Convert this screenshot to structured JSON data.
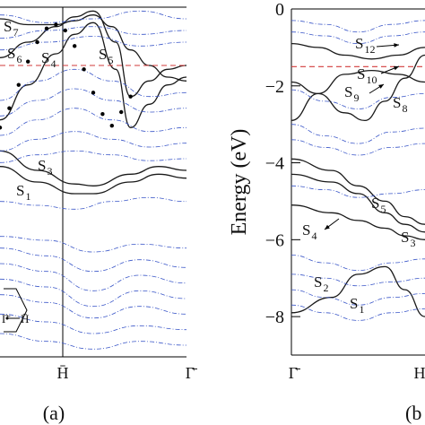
{
  "chart_data": [
    {
      "panel_label": "(a)",
      "type": "line",
      "x_ticks": [
        "",
        "H̄",
        "Γ̄"
      ],
      "ylim": [
        -9,
        0
      ],
      "fermi_level": -1.5,
      "state_labels": [
        {
          "name": "S",
          "sub": "7"
        },
        {
          "name": "S",
          "sub": "6"
        },
        {
          "name": "S",
          "sub": "4"
        },
        {
          "name": "S",
          "sub": "5"
        },
        {
          "name": "S",
          "sub": "3"
        },
        {
          "name": "S",
          "sub": "1"
        }
      ],
      "bz_inset": {
        "gamma": "Γ̄",
        "h": "H̄"
      },
      "dotted_band": {
        "x": [
          0.0,
          0.05,
          0.1,
          0.15,
          0.2,
          0.25,
          0.3,
          0.35,
          0.4,
          0.45,
          0.5,
          0.55,
          0.6,
          0.65,
          0.7
        ],
        "y": [
          -3.1,
          -2.6,
          -2.0,
          -1.4,
          -0.9,
          -0.55,
          -0.45,
          -0.6,
          -1.0,
          -1.6,
          -2.2,
          -2.75,
          -3.05,
          -2.7,
          -2.3
        ]
      },
      "series": [
        {
          "style": "solid",
          "x": [
            0,
            0.2,
            0.4,
            0.5,
            0.7,
            0.85,
            1.0
          ],
          "y": [
            -4.1,
            -4.5,
            -4.8,
            -4.8,
            -4.5,
            -4.3,
            -4.4
          ]
        },
        {
          "style": "solid",
          "x": [
            0,
            0.2,
            0.4,
            0.5,
            0.7,
            0.85,
            1.0
          ],
          "y": [
            -3.7,
            -4.2,
            -4.55,
            -4.6,
            -4.3,
            -4.1,
            -4.2
          ]
        },
        {
          "style": "solid",
          "x": [
            0,
            0.15,
            0.3,
            0.4,
            0.5,
            0.6,
            0.7,
            0.8,
            0.9,
            1.0
          ],
          "y": [
            -0.3,
            -0.45,
            -0.45,
            -0.35,
            -0.2,
            -0.5,
            -1.1,
            -1.5,
            -1.8,
            -1.9
          ]
        },
        {
          "style": "solid",
          "x": [
            0,
            0.15,
            0.3,
            0.4,
            0.5,
            0.62,
            0.7,
            0.8,
            0.9,
            1.0
          ],
          "y": [
            -1.3,
            -0.9,
            -0.5,
            -0.25,
            -0.1,
            -0.9,
            -2.3,
            -1.9,
            -1.6,
            -1.5
          ]
        },
        {
          "style": "solid",
          "x": [
            0,
            0.15,
            0.3,
            0.4,
            0.5,
            0.62,
            0.7,
            0.8,
            0.9,
            1.0
          ],
          "y": [
            -2.9,
            -2.0,
            -1.2,
            -0.7,
            -0.4,
            -1.6,
            -3.1,
            -2.5,
            -2.0,
            -1.8
          ]
        },
        {
          "style": "dashdot",
          "x": [
            0,
            0.25,
            0.5,
            0.75,
            1.0
          ],
          "y": [
            -0.2,
            -0.4,
            -0.3,
            -0.1,
            -0.3
          ]
        },
        {
          "style": "dashdot",
          "x": [
            0,
            0.25,
            0.5,
            0.75,
            1.0
          ],
          "y": [
            -0.8,
            -0.6,
            -0.5,
            -0.7,
            -0.6
          ]
        },
        {
          "style": "dashdot",
          "x": [
            0,
            0.25,
            0.5,
            0.75,
            1.0
          ],
          "y": [
            -1.1,
            -0.9,
            -0.75,
            -1.0,
            -0.9
          ]
        },
        {
          "style": "dashdot",
          "x": [
            0,
            0.2,
            0.4,
            0.6,
            0.8,
            1.0
          ],
          "y": [
            -2.4,
            -1.9,
            -1.6,
            -1.9,
            -2.3,
            -2.2
          ]
        },
        {
          "style": "dashdot",
          "x": [
            0,
            0.2,
            0.4,
            0.6,
            0.8,
            1.0
          ],
          "y": [
            -2.8,
            -2.4,
            -2.1,
            -2.4,
            -2.7,
            -2.6
          ]
        },
        {
          "style": "dashdot",
          "x": [
            0,
            0.2,
            0.4,
            0.6,
            0.8,
            1.0
          ],
          "y": [
            -3.3,
            -2.9,
            -2.6,
            -2.9,
            -3.2,
            -3.1
          ]
        },
        {
          "style": "dashdot",
          "x": [
            0,
            0.2,
            0.4,
            0.6,
            0.8,
            1.0
          ],
          "y": [
            -3.7,
            -3.4,
            -3.2,
            -3.4,
            -3.6,
            -3.5
          ]
        },
        {
          "style": "dashdot",
          "x": [
            0,
            0.2,
            0.4,
            0.6,
            0.8,
            1.0
          ],
          "y": [
            -4.0,
            -3.8,
            -3.7,
            -3.8,
            -3.95,
            -3.9
          ]
        },
        {
          "style": "dashdot",
          "x": [
            0,
            0.2,
            0.4,
            0.6,
            0.8,
            1.0
          ],
          "y": [
            -5.0,
            -5.1,
            -5.2,
            -5.0,
            -4.9,
            -5.0
          ]
        },
        {
          "style": "dashdot",
          "x": [
            0,
            0.25,
            0.5,
            0.75,
            1.0
          ],
          "y": [
            -5.9,
            -6.0,
            -6.3,
            -6.1,
            -6.2
          ]
        },
        {
          "style": "dashdot",
          "x": [
            0,
            0.25,
            0.5,
            0.75,
            1.0
          ],
          "y": [
            -6.2,
            -6.4,
            -6.8,
            -6.5,
            -6.7
          ]
        },
        {
          "style": "dashdot",
          "x": [
            0,
            0.25,
            0.5,
            0.75,
            1.0
          ],
          "y": [
            -6.6,
            -6.8,
            -7.3,
            -6.9,
            -7.1
          ]
        },
        {
          "style": "dashdot",
          "x": [
            0,
            0.25,
            0.5,
            0.75,
            1.0
          ],
          "y": [
            -7.0,
            -7.2,
            -7.7,
            -7.3,
            -7.5
          ]
        },
        {
          "style": "dashdot",
          "x": [
            0,
            0.25,
            0.5,
            0.75,
            1.0
          ],
          "y": [
            -7.4,
            -7.6,
            -8.0,
            -7.7,
            -7.9
          ]
        },
        {
          "style": "dashdot",
          "x": [
            0,
            0.25,
            0.5,
            0.75,
            1.0
          ],
          "y": [
            -7.9,
            -8.1,
            -8.4,
            -8.2,
            -8.3
          ]
        },
        {
          "style": "dashdot",
          "x": [
            0,
            0.25,
            0.5,
            0.75,
            1.0
          ],
          "y": [
            -8.4,
            -8.6,
            -8.8,
            -8.6,
            -8.7
          ]
        }
      ]
    },
    {
      "panel_label": "(b",
      "type": "line",
      "ylabel": "Energy (eV)",
      "ylim": [
        -9,
        0
      ],
      "yticks": [
        0,
        -2,
        -4,
        -6,
        -8
      ],
      "x_ticks": [
        "Γ̄",
        "H"
      ],
      "fermi_level": -1.5,
      "state_labels": [
        {
          "name": "S",
          "sub": "12"
        },
        {
          "name": "S",
          "sub": "10"
        },
        {
          "name": "S",
          "sub": "9"
        },
        {
          "name": "S",
          "sub": "8"
        },
        {
          "name": "S",
          "sub": "5"
        },
        {
          "name": "S",
          "sub": "4"
        },
        {
          "name": "S",
          "sub": "3"
        },
        {
          "name": "S",
          "sub": "2"
        },
        {
          "name": "S",
          "sub": "1"
        }
      ],
      "series": [
        {
          "style": "solid",
          "x": [
            0,
            0.3,
            0.5,
            0.7,
            0.85,
            1.0
          ],
          "y": [
            -7.9,
            -7.5,
            -6.9,
            -6.7,
            -7.3,
            -8.0
          ]
        },
        {
          "style": "solid",
          "x": [
            0,
            0.3,
            0.5,
            0.7,
            0.85,
            1.0
          ],
          "y": [
            -5.1,
            -5.3,
            -5.5,
            -5.7,
            -5.9,
            -6.0
          ]
        },
        {
          "style": "solid",
          "x": [
            0,
            0.3,
            0.5,
            0.7,
            0.85,
            1.0
          ],
          "y": [
            -4.3,
            -4.5,
            -4.8,
            -5.3,
            -5.6,
            -5.8
          ]
        },
        {
          "style": "solid",
          "x": [
            0,
            0.3,
            0.5,
            0.7,
            0.85,
            1.0
          ],
          "y": [
            -3.9,
            -4.2,
            -4.6,
            -5.0,
            -5.4,
            -5.6
          ]
        },
        {
          "style": "solid",
          "x": [
            0,
            0.2,
            0.4,
            0.6,
            0.8,
            1.0
          ],
          "y": [
            -2.9,
            -2.2,
            -1.7,
            -1.6,
            -1.7,
            -1.9
          ]
        },
        {
          "style": "solid",
          "x": [
            0,
            0.2,
            0.4,
            0.55,
            0.7,
            0.85,
            1.0
          ],
          "y": [
            -1.9,
            -2.2,
            -2.7,
            -2.9,
            -2.4,
            -1.8,
            -1.2
          ]
        },
        {
          "style": "solid",
          "x": [
            0,
            0.2,
            0.4,
            0.6,
            0.8,
            1.0
          ],
          "y": [
            -0.9,
            -1.0,
            -1.2,
            -1.3,
            -1.2,
            -1.0
          ]
        },
        {
          "style": "dashdot",
          "x": [
            0,
            0.25,
            0.5,
            0.75,
            1.0
          ],
          "y": [
            -0.3,
            -0.4,
            -0.6,
            -0.4,
            -0.3
          ]
        },
        {
          "style": "dashdot",
          "x": [
            0,
            0.25,
            0.5,
            0.75,
            1.0
          ],
          "y": [
            -0.6,
            -0.7,
            -0.9,
            -0.7,
            -0.6
          ]
        },
        {
          "style": "dashdot",
          "x": [
            0,
            0.25,
            0.5,
            0.75,
            1.0
          ],
          "y": [
            -2.1,
            -2.4,
            -2.6,
            -2.3,
            -2.2
          ]
        },
        {
          "style": "dashdot",
          "x": [
            0,
            0.25,
            0.5,
            0.75,
            1.0
          ],
          "y": [
            -3.0,
            -3.3,
            -3.5,
            -3.2,
            -3.1
          ]
        },
        {
          "style": "dashdot",
          "x": [
            0,
            0.25,
            0.5,
            0.75,
            1.0
          ],
          "y": [
            -3.4,
            -3.6,
            -3.8,
            -3.6,
            -3.5
          ]
        },
        {
          "style": "dashdot",
          "x": [
            0,
            0.25,
            0.5,
            0.75,
            1.0
          ],
          "y": [
            -4.6,
            -4.7,
            -4.9,
            -4.8,
            -4.7
          ]
        },
        {
          "style": "dashdot",
          "x": [
            0,
            0.25,
            0.5,
            0.75,
            1.0
          ],
          "y": [
            -6.4,
            -6.6,
            -6.8,
            -6.6,
            -6.5
          ]
        },
        {
          "style": "dashdot",
          "x": [
            0,
            0.25,
            0.5,
            0.75,
            1.0
          ],
          "y": [
            -6.9,
            -7.0,
            -7.2,
            -7.1,
            -7.0
          ]
        },
        {
          "style": "dashdot",
          "x": [
            0,
            0.25,
            0.5,
            0.75,
            1.0
          ],
          "y": [
            -7.3,
            -7.5,
            -7.7,
            -7.5,
            -7.4
          ]
        },
        {
          "style": "dashdot",
          "x": [
            0,
            0.25,
            0.5,
            0.75,
            1.0
          ],
          "y": [
            -7.7,
            -7.9,
            -8.1,
            -7.9,
            -7.8
          ]
        }
      ]
    }
  ]
}
